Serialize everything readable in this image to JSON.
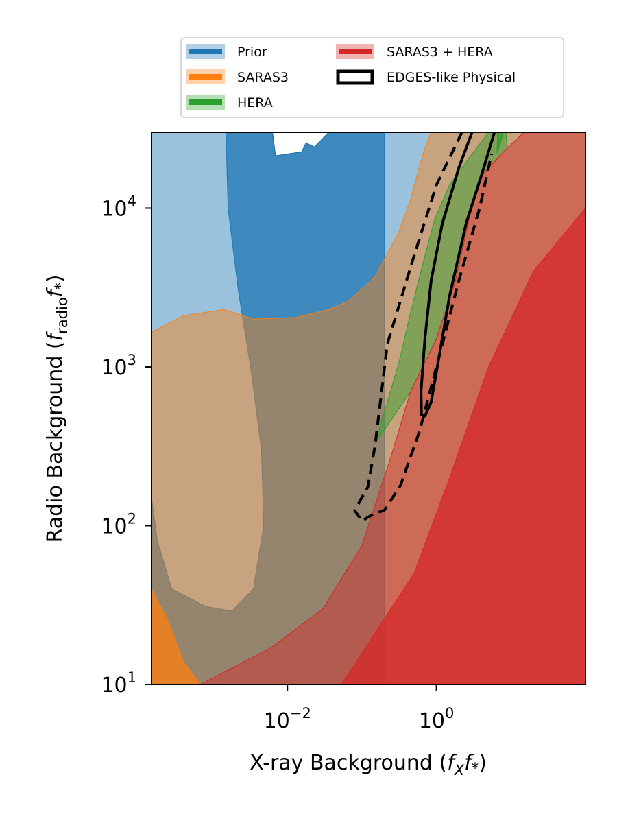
{
  "chart_data": {
    "type": "area",
    "title": "",
    "xlabel_main": "X-ray Background (",
    "xlabel_symbol": "f",
    "xlabel_sub": "X",
    "xlabel_symbol2": "f",
    "xlabel_star": "*",
    "xlabel_close": ")",
    "ylabel_main": "Radio Background (",
    "ylabel_symbol": "f",
    "ylabel_sub": "radio",
    "ylabel_symbol2": "f",
    "ylabel_star": "*",
    "ylabel_close": ")",
    "xscale": "log",
    "yscale": "log",
    "xlim": [
      0.00015,
      100
    ],
    "ylim": [
      10,
      30000
    ],
    "xticks": [
      {
        "value": 0.01,
        "base": "10",
        "exp": "−2"
      },
      {
        "value": 1,
        "base": "10",
        "exp": "0"
      }
    ],
    "yticks": [
      {
        "value": 10,
        "base": "10",
        "exp": "1"
      },
      {
        "value": 100,
        "base": "10",
        "exp": "2"
      },
      {
        "value": 1000,
        "base": "10",
        "exp": "3"
      },
      {
        "value": 10000,
        "base": "10",
        "exp": "4"
      }
    ],
    "legend_position": "above plot, two columns",
    "legend": [
      {
        "label": "Prior",
        "color": "#1f77b4"
      },
      {
        "label": "SARAS3",
        "color": "#ff7f0e"
      },
      {
        "label": "HERA",
        "color": "#2ca02c"
      },
      {
        "label": "SARAS3 + HERA",
        "color": "#d62728"
      },
      {
        "label": "EDGES-like Physical",
        "color": "#000000"
      }
    ],
    "series": [
      {
        "name": "Prior",
        "color": "#1f77b4",
        "style": "filled-contour",
        "regions": [
          {
            "level": "outer",
            "points": [
              [
                0.00015,
                30000
              ],
              [
                100,
                30000
              ],
              [
                100,
                10
              ],
              [
                0.00015,
                10
              ]
            ]
          },
          {
            "level": "inner",
            "points": [
              [
                0.0015,
                30000
              ],
              [
                0.0016,
                10000
              ],
              [
                0.0022,
                3000
              ],
              [
                0.0032,
                1000
              ],
              [
                0.0045,
                300
              ],
              [
                0.0048,
                100
              ],
              [
                0.0035,
                40
              ],
              [
                0.0018,
                29
              ],
              [
                0.0008,
                31
              ],
              [
                0.00028,
                40
              ],
              [
                0.00018,
                80
              ],
              [
                0.00015,
                150
              ],
              [
                0.00015,
                10
              ],
              [
                0.2,
                10
              ],
              [
                0.2,
                30000
              ]
            ]
          }
        ],
        "holes": [
          {
            "level": "outer",
            "points": [
              [
                0.0063,
                30000
              ],
              [
                0.0069,
                21300
              ],
              [
                0.0156,
                22600
              ],
              [
                0.0178,
                25700
              ],
              [
                0.023,
                24200
              ],
              [
                0.036,
                30000
              ]
            ]
          }
        ]
      },
      {
        "name": "SARAS3",
        "color": "#ff7f0e",
        "style": "filled-contour",
        "regions": [
          {
            "level": "outer",
            "points": [
              [
                0.00015,
                1650
              ],
              [
                0.0004,
                2100
              ],
              [
                0.0014,
                2300
              ],
              [
                0.0035,
                2000
              ],
              [
                0.0132,
                2050
              ],
              [
                0.036,
                2300
              ],
              [
                0.067,
                2600
              ],
              [
                0.151,
                3700
              ],
              [
                0.31,
                7000
              ],
              [
                0.44,
                11000
              ],
              [
                0.66,
                22000
              ],
              [
                0.85,
                30000
              ],
              [
                100,
                30000
              ],
              [
                100,
                10
              ],
              [
                0.00015,
                10
              ]
            ]
          },
          {
            "level": "inner",
            "points": [
              [
                0.00015,
                40
              ],
              [
                0.00025,
                25
              ],
              [
                0.0004,
                14
              ],
              [
                0.00068,
                10
              ],
              [
                0.00015,
                10
              ]
            ]
          }
        ]
      },
      {
        "name": "HERA",
        "color": "#2ca02c",
        "style": "filled-contour",
        "regions": [
          {
            "level": "outer",
            "points": [
              [
                0.15,
                330
              ],
              [
                0.22,
                600
              ],
              [
                0.32,
                1100
              ],
              [
                0.45,
                2200
              ],
              [
                0.66,
                4500
              ],
              [
                0.95,
                8500
              ],
              [
                1.5,
                14000
              ],
              [
                2.6,
                20000
              ],
              [
                5.0,
                30000
              ],
              [
                8.5,
                30000
              ],
              [
                9.0,
                24000
              ],
              [
                4.0,
                16000
              ],
              [
                2.8,
                9000
              ],
              [
                1.8,
                3500
              ],
              [
                1.0,
                1500
              ],
              [
                0.45,
                700
              ]
            ]
          },
          {
            "level": "inner",
            "points": [
              [
                6.6,
                30000
              ],
              [
                6.5,
                22000
              ],
              [
                8.0,
                30000
              ]
            ]
          }
        ]
      },
      {
        "name": "SARAS3 + HERA",
        "color": "#d62728",
        "style": "filled-contour",
        "regions": [
          {
            "level": "outer",
            "points": [
              [
                0.00068,
                10
              ],
              [
                0.006,
                17
              ],
              [
                0.03,
                30
              ],
              [
                0.1,
                75
              ],
              [
                0.25,
                280
              ],
              [
                0.45,
                700
              ],
              [
                1.0,
                1500
              ],
              [
                1.8,
                3500
              ],
              [
                2.8,
                9000
              ],
              [
                4.0,
                16000
              ],
              [
                9.0,
                24000
              ],
              [
                15.0,
                30000
              ],
              [
                100,
                30000
              ],
              [
                100,
                10
              ]
            ]
          },
          {
            "level": "inner",
            "points": [
              [
                0.053,
                10
              ],
              [
                0.5,
                50
              ],
              [
                1.5,
                200
              ],
              [
                5.0,
                1000
              ],
              [
                20.0,
                4000
              ],
              [
                100,
                10000
              ],
              [
                100,
                10
              ]
            ]
          }
        ]
      },
      {
        "name": "EDGES-like Physical",
        "color": "#000000",
        "style": "line-contour",
        "contours": [
          {
            "level": "inner",
            "dash": "solid",
            "points": [
              [
                3.0,
                30000
              ],
              [
                2.0,
                18000
              ],
              [
                1.2,
                8000
              ],
              [
                0.85,
                3500
              ],
              [
                0.7,
                1500
              ],
              [
                0.62,
                700
              ],
              [
                0.63,
                500
              ],
              [
                0.7,
                490
              ],
              [
                0.85,
                600
              ],
              [
                1.1,
                1200
              ],
              [
                1.5,
                2800
              ],
              [
                2.5,
                8000
              ],
              [
                4.0,
                16000
              ],
              [
                6.0,
                30000
              ]
            ]
          },
          {
            "level": "outer",
            "dash": "dashed",
            "points": [
              [
                2.2,
                30000
              ],
              [
                1.0,
                14000
              ],
              [
                0.5,
                5000
              ],
              [
                0.22,
                1400
              ],
              [
                0.15,
                320
              ],
              [
                0.12,
                175
              ],
              [
                0.08,
                125
              ],
              [
                0.1,
                107
              ],
              [
                0.14,
                118
              ],
              [
                0.2,
                125
              ],
              [
                0.33,
                180
              ],
              [
                0.6,
                400
              ],
              [
                1.0,
                1000
              ],
              [
                2.0,
                3500
              ],
              [
                3.8,
                10000
              ],
              [
                5.5,
                22000
              ]
            ]
          }
        ]
      }
    ]
  }
}
